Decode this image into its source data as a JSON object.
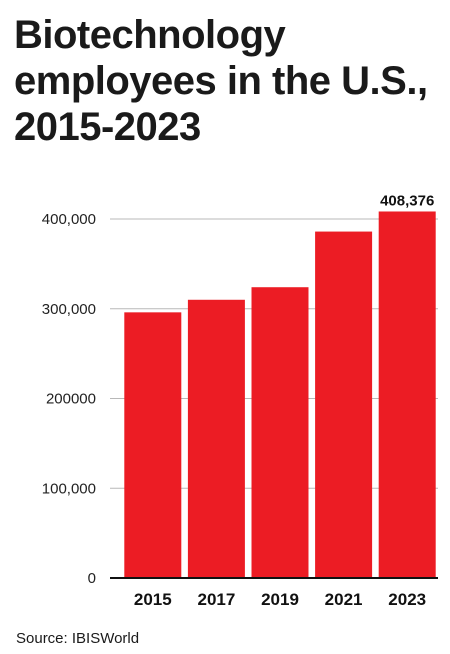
{
  "chart_data": {
    "type": "bar",
    "title_lines": [
      "Biotechnology",
      "employees in the U.S.,",
      "2015-2023"
    ],
    "categories": [
      "2015",
      "2017",
      "2019",
      "2021",
      "2023"
    ],
    "values": [
      296000,
      310000,
      324000,
      386000,
      408376
    ],
    "value_labels": [
      "",
      "",
      "",
      "",
      "408,376"
    ],
    "yticks": [
      {
        "value": 0,
        "label": "0"
      },
      {
        "value": 100000,
        "label": "100,000"
      },
      {
        "value": 200000,
        "label": "200000"
      },
      {
        "value": 300000,
        "label": "300,000"
      },
      {
        "value": 400000,
        "label": "400,000"
      }
    ],
    "ylim": [
      0,
      400000
    ],
    "grid": true,
    "legend": "none",
    "bar_color": "#ec1c24",
    "grid_color": "#b8b8b8"
  },
  "source": "Source: IBISWorld"
}
